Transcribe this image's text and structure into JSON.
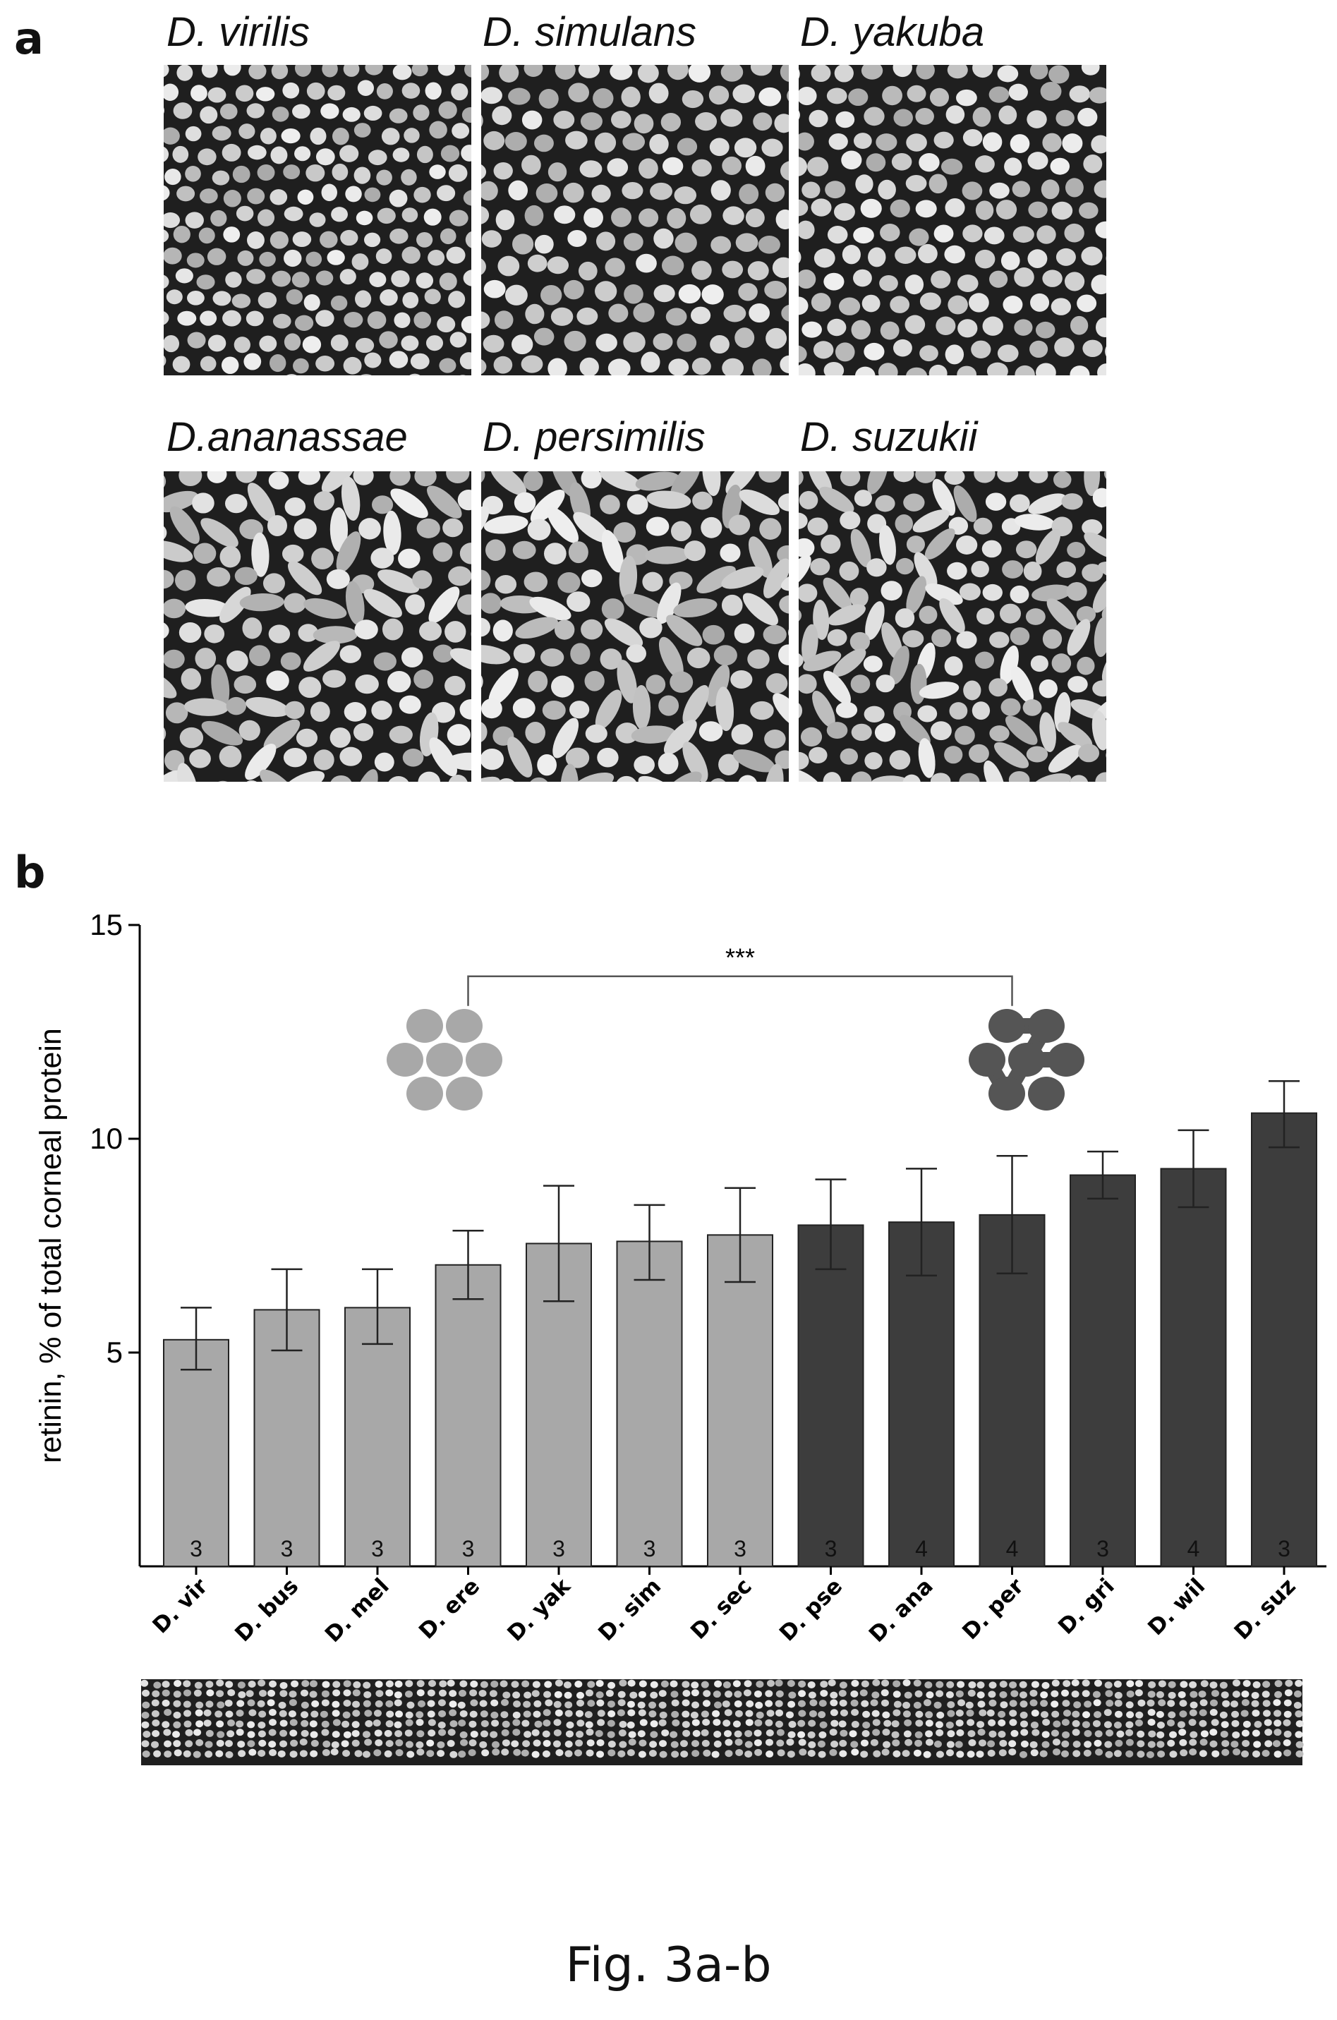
{
  "figure": {
    "panel_a_letter": "a",
    "panel_b_letter": "b",
    "caption": "Fig. 3a-b"
  },
  "panel_a": {
    "micrographs": [
      {
        "label": "D. virilis",
        "pattern": "nipple array"
      },
      {
        "label": "D. simulans",
        "pattern": "nipple array"
      },
      {
        "label": "D. yakuba",
        "pattern": "nipple array"
      },
      {
        "label": "D.ananassae",
        "pattern": "fused maze-like"
      },
      {
        "label": "D. persimilis",
        "pattern": "fused maze-like"
      },
      {
        "label": "D. suzukii",
        "pattern": "fused maze-like"
      }
    ]
  },
  "chart_data": {
    "type": "bar",
    "title": "",
    "xlabel": "",
    "ylabel": "retinin, % of total corneal protein",
    "ylim": [
      0,
      15
    ],
    "yticks": [
      5,
      10,
      15
    ],
    "categories": [
      "D. vir",
      "D. bus",
      "D. mel",
      "D. ere",
      "D. yak",
      "D. sim",
      "D. sec",
      "D. pse",
      "D. ana",
      "D. per",
      "D. gri",
      "D. wil",
      "D. suz"
    ],
    "values": [
      5.3,
      6.0,
      6.05,
      7.05,
      7.55,
      7.6,
      7.75,
      7.98,
      8.05,
      8.22,
      9.15,
      9.3,
      10.6
    ],
    "error_low": [
      4.6,
      5.05,
      5.2,
      6.25,
      6.2,
      6.7,
      6.65,
      6.95,
      6.8,
      6.85,
      8.6,
      8.4,
      9.8
    ],
    "error_high": [
      6.05,
      6.95,
      6.95,
      7.85,
      8.9,
      8.45,
      8.85,
      9.05,
      9.3,
      9.6,
      9.7,
      10.2,
      11.35
    ],
    "n": [
      "3",
      "3",
      "3",
      "3",
      "3",
      "3",
      "3",
      "3",
      "4",
      "4",
      "3",
      "4",
      "3"
    ],
    "groups": [
      "nipple",
      "nipple",
      "nipple",
      "nipple",
      "nipple",
      "nipple",
      "nipple",
      "maze",
      "maze",
      "maze",
      "maze",
      "maze",
      "maze"
    ],
    "colors": {
      "nipple": "#a8a8a8",
      "maze": "#3d3d3d"
    },
    "annotations": [
      {
        "text": "***",
        "from_category": "D. ere",
        "to_category": "D. per",
        "y": 13.8
      }
    ],
    "grid": false,
    "legend": "none; icons of separate nipples (light) and fused nipples (dark) above bar groups"
  }
}
